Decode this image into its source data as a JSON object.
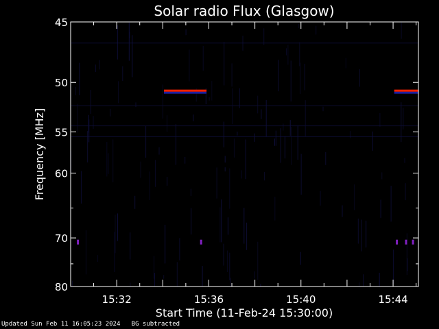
{
  "chart_data": {
    "type": "heatmap",
    "title": "Solar radio Flux (Glasgow)",
    "xlabel": "Start Time (11-Feb-24 15:30:00)",
    "ylabel": "Frequency [MHz]",
    "x_unit": "minutes since 15:30",
    "xlim": [
      0,
      15.1
    ],
    "ylim": [
      45,
      80
    ],
    "x_ticks": [
      {
        "value": 2,
        "label": "15:32"
      },
      {
        "value": 6,
        "label": "15:36"
      },
      {
        "value": 10,
        "label": "15:40"
      },
      {
        "value": 14,
        "label": "15:44"
      }
    ],
    "y_ticks": [
      {
        "value": 45,
        "label": "45"
      },
      {
        "value": 50,
        "label": "50"
      },
      {
        "value": 55,
        "label": "55"
      },
      {
        "value": 60,
        "label": "60"
      },
      {
        "value": 70,
        "label": "70"
      },
      {
        "value": 80,
        "label": "80"
      }
    ],
    "background_color": "#000000",
    "noise_color": "#101040",
    "features": [
      {
        "name": "band",
        "freq_mhz": 50.8,
        "t_start": 4.05,
        "t_end": 5.9,
        "color": "#ff2000"
      },
      {
        "name": "band",
        "freq_mhz": 50.8,
        "t_start": 14.05,
        "t_end": 15.1,
        "color": "#ff2000"
      },
      {
        "name": "dot",
        "freq_mhz": 70.7,
        "t": 0.3,
        "color": "#8020c0"
      },
      {
        "name": "dot",
        "freq_mhz": 70.7,
        "t": 5.65,
        "color": "#8020c0"
      },
      {
        "name": "dot",
        "freq_mhz": 70.7,
        "t": 14.15,
        "color": "#8020c0"
      },
      {
        "name": "dot",
        "freq_mhz": 70.7,
        "t": 14.55,
        "color": "#8020c0"
      },
      {
        "name": "dot",
        "freq_mhz": 70.7,
        "t": 14.85,
        "color": "#8020c0"
      }
    ]
  },
  "footer": {
    "updated": "Updated Sun Feb 11 16:05:23 2024",
    "bg_note": "BG subtracted"
  }
}
